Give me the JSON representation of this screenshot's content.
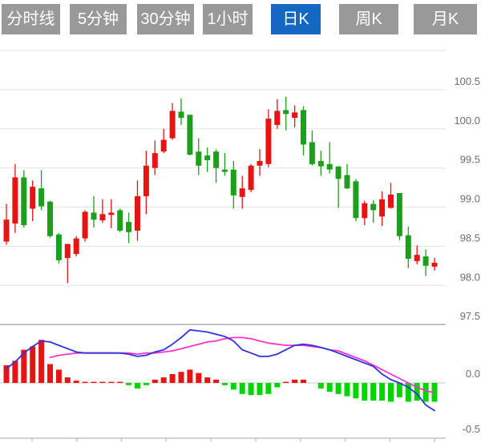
{
  "tabs": [
    {
      "name": "tab-minute-line",
      "label": "分时线",
      "active": false
    },
    {
      "name": "tab-5min",
      "label": "5分钟",
      "active": false
    },
    {
      "name": "tab-30min",
      "label": "30分钟",
      "active": false
    },
    {
      "name": "tab-1hour",
      "label": "1小时",
      "active": false
    },
    {
      "name": "tab-daily-k",
      "label": "日K",
      "active": true
    },
    {
      "name": "tab-weekly-k",
      "label": "周K",
      "active": false
    },
    {
      "name": "tab-monthly-k",
      "label": "月K",
      "active": false
    }
  ],
  "colors": {
    "tab_bg": "#999999",
    "tab_active": "#1568c2",
    "tab_text": "#ffffff",
    "up": "#e81414",
    "down": "#1d9e1d",
    "macd_up": "#e81414",
    "macd_down": "#00d500",
    "dif_line": "#3232dd",
    "dea_line": "#ff32cc",
    "grid": "#e3e3e3",
    "divider": "#b5b5b5",
    "zero_line": "#dcdcdc",
    "axis": "#c4c4c4",
    "label": "#6e6e6e"
  },
  "chart_data": {
    "type": "candlestick+macd",
    "price_axis": {
      "tick_labels": [
        "100.5",
        "100.0",
        "99.5",
        "99.0",
        "98.5",
        "98.0",
        "97.5"
      ],
      "tick_values": [
        100.5,
        100.0,
        99.5,
        99.0,
        98.5,
        98.0,
        97.5
      ],
      "unlabeled_top_grid": 101.0
    },
    "macd_axis": {
      "tick_labels": [
        "0.0",
        "-0.5"
      ],
      "tick_values": [
        0.0,
        -0.5
      ]
    },
    "candles_ohlc": [
      [
        98.56,
        99.04,
        98.52,
        98.84
      ],
      [
        98.79,
        99.55,
        98.67,
        99.38
      ],
      [
        99.38,
        99.47,
        98.74,
        98.77
      ],
      [
        98.98,
        99.34,
        98.82,
        99.26
      ],
      [
        99.24,
        99.47,
        98.96,
        99.01
      ],
      [
        99.07,
        99.08,
        98.61,
        98.63
      ],
      [
        98.65,
        98.67,
        98.28,
        98.32
      ],
      [
        98.35,
        98.53,
        98.03,
        98.53
      ],
      [
        98.4,
        98.63,
        98.37,
        98.6
      ],
      [
        98.6,
        98.96,
        98.56,
        98.94
      ],
      [
        98.93,
        99.14,
        98.74,
        98.84
      ],
      [
        98.83,
        99.1,
        98.8,
        98.91
      ],
      [
        98.9,
        99.1,
        98.73,
        98.93
      ],
      [
        98.96,
        98.98,
        98.68,
        98.7
      ],
      [
        98.81,
        98.93,
        98.54,
        98.68
      ],
      [
        98.7,
        99.34,
        98.57,
        99.14
      ],
      [
        99.14,
        99.72,
        98.91,
        99.53
      ],
      [
        99.5,
        99.85,
        99.41,
        99.69
      ],
      [
        99.71,
        100.0,
        99.69,
        99.86
      ],
      [
        99.88,
        100.33,
        99.86,
        100.23
      ],
      [
        100.22,
        100.39,
        100.05,
        100.14
      ],
      [
        100.18,
        100.18,
        99.66,
        99.67
      ],
      [
        99.71,
        99.88,
        99.41,
        99.53
      ],
      [
        99.66,
        99.76,
        99.45,
        99.6
      ],
      [
        99.71,
        99.74,
        99.31,
        99.5
      ],
      [
        99.48,
        99.69,
        99.4,
        99.45
      ],
      [
        99.48,
        99.59,
        98.98,
        99.15
      ],
      [
        99.13,
        99.4,
        98.98,
        99.24
      ],
      [
        99.22,
        99.55,
        99.19,
        99.53
      ],
      [
        99.53,
        99.74,
        99.4,
        99.59
      ],
      [
        99.55,
        100.25,
        99.51,
        100.13
      ],
      [
        100.05,
        100.38,
        100.0,
        100.23
      ],
      [
        100.24,
        100.41,
        99.98,
        100.19
      ],
      [
        100.14,
        100.3,
        100.02,
        100.21
      ],
      [
        100.24,
        100.29,
        99.66,
        99.8
      ],
      [
        99.83,
        99.98,
        99.53,
        99.55
      ],
      [
        99.59,
        99.72,
        99.4,
        99.52
      ],
      [
        99.55,
        99.83,
        99.43,
        99.48
      ],
      [
        99.52,
        99.52,
        98.99,
        99.36
      ],
      [
        99.41,
        99.55,
        99.23,
        99.24
      ],
      [
        99.33,
        99.36,
        98.82,
        98.86
      ],
      [
        98.86,
        99.08,
        98.77,
        99.05
      ],
      [
        99.04,
        99.09,
        98.8,
        98.96
      ],
      [
        98.88,
        99.2,
        98.76,
        99.1
      ],
      [
        98.99,
        99.31,
        98.98,
        99.16
      ],
      [
        99.18,
        99.18,
        98.58,
        98.63
      ],
      [
        98.64,
        98.75,
        98.22,
        98.34
      ],
      [
        98.31,
        98.51,
        98.27,
        98.39
      ],
      [
        98.37,
        98.46,
        98.12,
        98.25
      ],
      [
        98.24,
        98.35,
        98.19,
        98.29
      ]
    ],
    "macd_histogram": [
      0.16,
      0.2,
      0.3,
      0.33,
      0.39,
      0.17,
      0.12,
      0.05,
      0.02,
      0.01,
      0.01,
      0.01,
      0.01,
      0.01,
      -0.02,
      -0.05,
      -0.02,
      0.03,
      0.05,
      0.08,
      0.1,
      0.12,
      0.09,
      0.05,
      0.03,
      -0.02,
      -0.06,
      -0.1,
      -0.11,
      -0.11,
      -0.1,
      -0.04,
      0.01,
      0.03,
      0.03,
      0.0,
      -0.05,
      -0.08,
      -0.1,
      -0.12,
      -0.14,
      -0.16,
      -0.16,
      -0.16,
      -0.17,
      -0.13,
      -0.17,
      -0.16,
      -0.17,
      -0.17
    ],
    "dif_line": [
      0.13,
      0.19,
      0.27,
      0.33,
      0.38,
      0.37,
      0.34,
      0.31,
      0.28,
      0.27,
      0.27,
      0.27,
      0.27,
      0.27,
      0.26,
      0.24,
      0.25,
      0.28,
      0.3,
      0.35,
      0.41,
      0.48,
      0.47,
      0.46,
      0.44,
      0.42,
      0.38,
      0.3,
      0.27,
      0.24,
      0.24,
      0.26,
      0.3,
      0.34,
      0.35,
      0.34,
      0.32,
      0.3,
      0.27,
      0.24,
      0.21,
      0.18,
      0.15,
      0.08,
      0.03,
      0.0,
      -0.04,
      -0.1,
      -0.2,
      -0.25
    ],
    "dea_line": [
      null,
      null,
      null,
      null,
      null,
      0.23,
      0.25,
      0.26,
      0.27,
      0.27,
      0.27,
      0.27,
      0.27,
      0.27,
      0.27,
      0.26,
      0.27,
      0.27,
      0.28,
      0.29,
      0.31,
      0.33,
      0.35,
      0.37,
      0.38,
      0.4,
      0.41,
      0.41,
      0.4,
      0.38,
      0.36,
      0.35,
      0.34,
      0.34,
      0.34,
      0.33,
      0.32,
      0.3,
      0.29,
      0.26,
      0.23,
      0.2,
      0.16,
      0.12,
      0.08,
      0.04,
      0.0,
      -0.04,
      -0.07,
      -0.09
    ]
  }
}
